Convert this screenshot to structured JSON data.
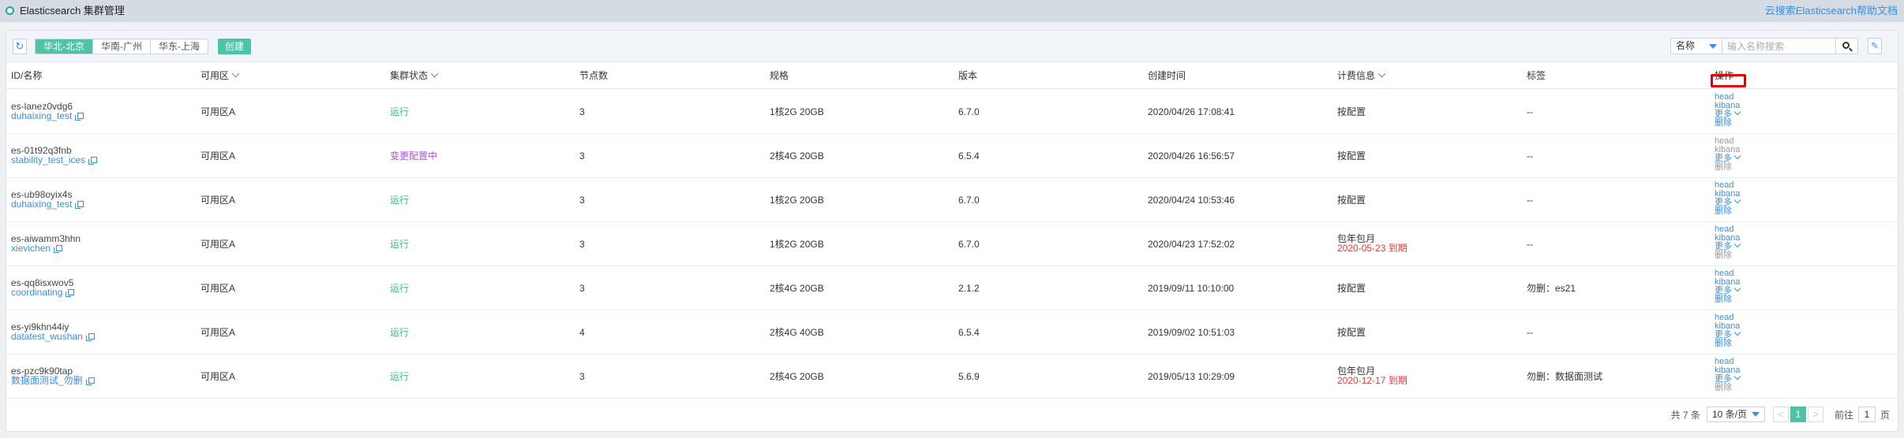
{
  "header": {
    "title": "Elasticsearch 集群管理",
    "help_link": "云搜索Elasticsearch帮助文档"
  },
  "toolbar": {
    "refresh_icon": "↻",
    "regions": [
      {
        "label": "华北-北京",
        "active": true
      },
      {
        "label": "华南-广州",
        "active": false
      },
      {
        "label": "华东-上海",
        "active": false
      }
    ],
    "create_label": "创建",
    "search_field": "名称",
    "search_placeholder": "输入名称搜索",
    "edit_icon": "✎"
  },
  "table": {
    "columns": [
      "ID/名称",
      "可用区",
      "集群状态",
      "节点数",
      "规格",
      "版本",
      "创建时间",
      "计费信息",
      "标签",
      "操作"
    ],
    "rows": [
      {
        "id": "es-lanez0vdg6",
        "name": "duhaixing_test",
        "zone": "可用区A",
        "status": "运行",
        "status_type": "ok",
        "nodes": "3",
        "spec": "1核2G 20GB",
        "version": "6.7.0",
        "created": "2020/04/26 17:08:41",
        "billing": "按配置",
        "billing_expire": "",
        "tag": "--",
        "actions": [
          "head",
          "kibana",
          "更多",
          "删除"
        ],
        "disabled": [
          false,
          false,
          false,
          false
        ]
      },
      {
        "id": "es-01t92q3fnb",
        "name": "stability_test_ices",
        "zone": "可用区A",
        "status": "变更配置中",
        "status_type": "change",
        "nodes": "3",
        "spec": "2核4G 20GB",
        "version": "6.5.4",
        "created": "2020/04/26 16:56:57",
        "billing": "按配置",
        "billing_expire": "",
        "tag": "--",
        "actions": [
          "head",
          "kibana",
          "更多",
          "删除"
        ],
        "disabled": [
          true,
          true,
          false,
          true
        ]
      },
      {
        "id": "es-ub98oyix4s",
        "name": "duhaixing_test",
        "zone": "可用区A",
        "status": "运行",
        "status_type": "ok",
        "nodes": "3",
        "spec": "1核2G 20GB",
        "version": "6.7.0",
        "created": "2020/04/24 10:53:46",
        "billing": "按配置",
        "billing_expire": "",
        "tag": "--",
        "actions": [
          "head",
          "kibana",
          "更多",
          "删除"
        ],
        "disabled": [
          false,
          false,
          false,
          false
        ]
      },
      {
        "id": "es-aiwamm3hhn",
        "name": "xievichen",
        "zone": "可用区A",
        "status": "运行",
        "status_type": "ok",
        "nodes": "3",
        "spec": "1核2G 20GB",
        "version": "6.7.0",
        "created": "2020/04/23 17:52:02",
        "billing": "包年包月",
        "billing_expire": "2020-05-23 到期",
        "tag": "--",
        "actions": [
          "head",
          "kibana",
          "更多",
          "删除"
        ],
        "disabled": [
          false,
          false,
          false,
          true
        ]
      },
      {
        "id": "es-qq8isxwov5",
        "name": "coordinating",
        "zone": "可用区A",
        "status": "运行",
        "status_type": "ok",
        "nodes": "3",
        "spec": "2核4G 20GB",
        "version": "2.1.2",
        "created": "2019/09/11 10:10:00",
        "billing": "按配置",
        "billing_expire": "",
        "tag": "勿删：es21",
        "actions": [
          "head",
          "kibana",
          "更多",
          "删除"
        ],
        "disabled": [
          false,
          false,
          false,
          false
        ]
      },
      {
        "id": "es-yi9khn44iy",
        "name": "datatest_wushan",
        "zone": "可用区A",
        "status": "运行",
        "status_type": "ok",
        "nodes": "4",
        "spec": "2核4G 40GB",
        "version": "6.5.4",
        "created": "2019/09/02 10:51:03",
        "billing": "按配置",
        "billing_expire": "",
        "tag": "--",
        "actions": [
          "head",
          "kibana",
          "更多",
          "删除"
        ],
        "disabled": [
          false,
          false,
          false,
          false
        ]
      },
      {
        "id": "es-pzc9k90tap",
        "name": "数据面测试_勿删",
        "zone": "可用区A",
        "status": "运行",
        "status_type": "ok",
        "nodes": "3",
        "spec": "2核4G 20GB",
        "version": "5.6.9",
        "created": "2019/05/13 10:29:09",
        "billing": "包年包月",
        "billing_expire": "2020-12-17 到期",
        "tag": "勿删：数据面测试",
        "actions": [
          "head",
          "kibana",
          "更多",
          "删除"
        ],
        "disabled": [
          false,
          false,
          false,
          true
        ]
      }
    ]
  },
  "pagination": {
    "total": "共 7 条",
    "page_size": "10 条/页",
    "prev": "<",
    "current": "1",
    "next": ">",
    "goto_label": "前往",
    "goto_value": "1",
    "page_unit": "页"
  }
}
